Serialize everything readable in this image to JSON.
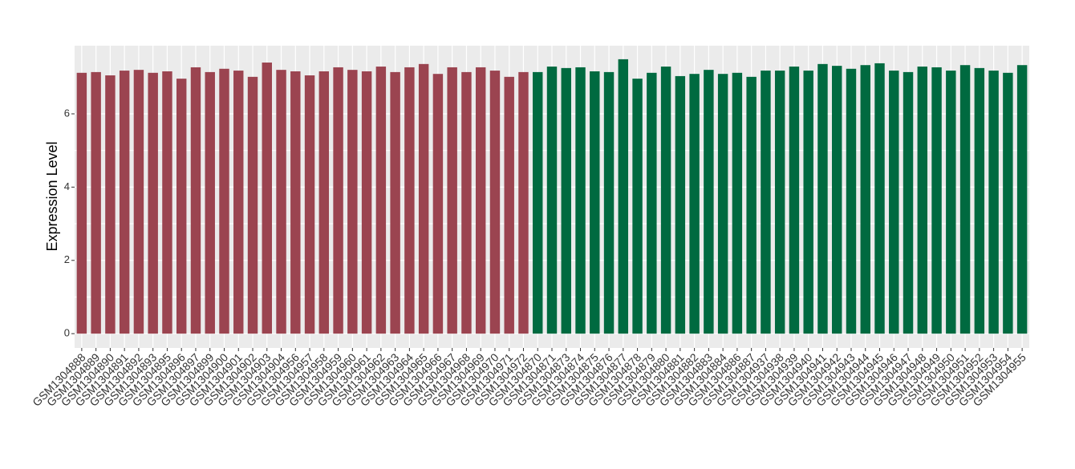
{
  "chart_data": {
    "type": "bar",
    "y_label": "Expression Level",
    "categories": [
      "GSM1304888",
      "GSM1304889",
      "GSM1304890",
      "GSM1304891",
      "GSM1304892",
      "GSM1304893",
      "GSM1304895",
      "GSM1304896",
      "GSM1304897",
      "GSM1304899",
      "GSM1304900",
      "GSM1304901",
      "GSM1304902",
      "GSM1304903",
      "GSM1304904",
      "GSM1304956",
      "GSM1304957",
      "GSM1304958",
      "GSM1304959",
      "GSM1304960",
      "GSM1304961",
      "GSM1304962",
      "GSM1304963",
      "GSM1304964",
      "GSM1304965",
      "GSM1304966",
      "GSM1304967",
      "GSM1304968",
      "GSM1304969",
      "GSM1304970",
      "GSM1304971",
      "GSM1304972",
      "GSM1304870",
      "GSM1304871",
      "GSM1304873",
      "GSM1304874",
      "GSM1304875",
      "GSM1304876",
      "GSM1304877",
      "GSM1304878",
      "GSM1304879",
      "GSM1304880",
      "GSM1304881",
      "GSM1304882",
      "GSM1304883",
      "GSM1304884",
      "GSM1304886",
      "GSM1304887",
      "GSM1304937",
      "GSM1304938",
      "GSM1304939",
      "GSM1304940",
      "GSM1304941",
      "GSM1304942",
      "GSM1304943",
      "GSM1304944",
      "GSM1304945",
      "GSM1304946",
      "GSM1304947",
      "GSM1304948",
      "GSM1304949",
      "GSM1304950",
      "GSM1304951",
      "GSM1304952",
      "GSM1304953",
      "GSM1304954",
      "GSM1304955"
    ],
    "values": [
      7.12,
      7.14,
      7.05,
      7.18,
      7.2,
      7.12,
      7.16,
      6.96,
      7.27,
      7.14,
      7.23,
      7.18,
      7.01,
      7.4,
      7.2,
      7.16,
      7.05,
      7.16,
      7.27,
      7.2,
      7.16,
      7.29,
      7.14,
      7.27,
      7.36,
      7.09,
      7.27,
      7.14,
      7.27,
      7.18,
      7.01,
      7.14,
      7.14,
      7.29,
      7.25,
      7.27,
      7.16,
      7.14,
      7.49,
      6.96,
      7.12,
      7.29,
      7.03,
      7.09,
      7.2,
      7.09,
      7.12,
      7.01,
      7.18,
      7.18,
      7.29,
      7.18,
      7.36,
      7.31,
      7.23,
      7.33,
      7.38,
      7.18,
      7.14,
      7.29,
      7.27,
      7.18,
      7.33,
      7.25,
      7.18,
      7.12,
      7.33
    ],
    "colors": [
      "#9b4450",
      "#9b4450",
      "#9b4450",
      "#9b4450",
      "#9b4450",
      "#9b4450",
      "#9b4450",
      "#9b4450",
      "#9b4450",
      "#9b4450",
      "#9b4450",
      "#9b4450",
      "#9b4450",
      "#9b4450",
      "#9b4450",
      "#9b4450",
      "#9b4450",
      "#9b4450",
      "#9b4450",
      "#9b4450",
      "#9b4450",
      "#9b4450",
      "#9b4450",
      "#9b4450",
      "#9b4450",
      "#9b4450",
      "#9b4450",
      "#9b4450",
      "#9b4450",
      "#9b4450",
      "#9b4450",
      "#9b4450",
      "#006a40",
      "#006a40",
      "#006a40",
      "#006a40",
      "#006a40",
      "#006a40",
      "#006a40",
      "#006a40",
      "#006a40",
      "#006a40",
      "#006a40",
      "#006a40",
      "#006a40",
      "#006a40",
      "#006a40",
      "#006a40",
      "#006a40",
      "#006a40",
      "#006a40",
      "#006a40",
      "#006a40",
      "#006a40",
      "#006a40",
      "#006a40",
      "#006a40",
      "#006a40",
      "#006a40",
      "#006a40",
      "#006a40",
      "#006a40",
      "#006a40",
      "#006a40",
      "#006a40",
      "#006a40",
      "#006a40"
    ],
    "ylim": [
      -0.39,
      7.86
    ],
    "yticks": [
      0,
      2,
      4,
      6
    ],
    "grid": true
  }
}
